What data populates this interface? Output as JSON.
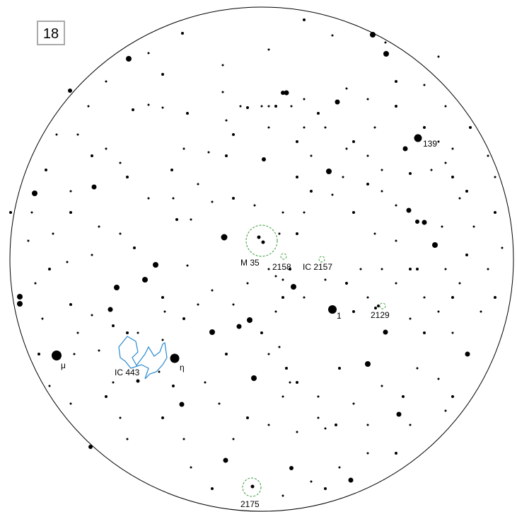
{
  "page_number": "18",
  "labels": [
    {
      "text": "139"
    },
    {
      "text": "M 35"
    },
    {
      "text": "2158"
    },
    {
      "text": "IC 2157"
    },
    {
      "text": "1"
    },
    {
      "text": "2129"
    },
    {
      "text": "μ"
    },
    {
      "text": "IC 443"
    },
    {
      "text": "η"
    },
    {
      "text": "2175"
    }
  ]
}
